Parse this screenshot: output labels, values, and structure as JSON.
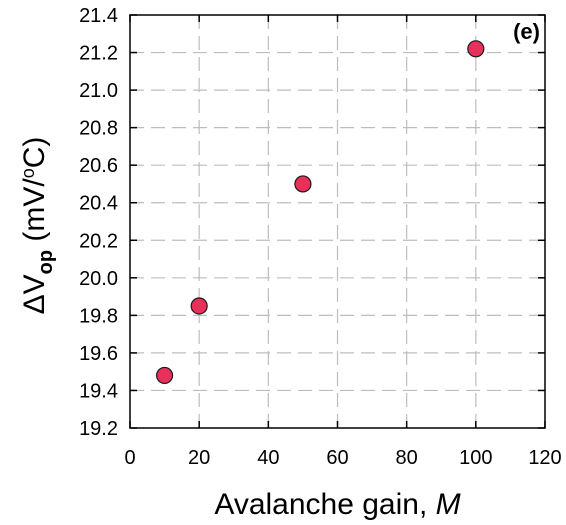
{
  "chart_data": {
    "type": "scatter",
    "panel_label": "(e)",
    "xlabel": {
      "text": "Avalanche gain, ",
      "italic_part": "M"
    },
    "ylabel": {
      "prefix": "ΔV",
      "subscript": "op",
      "units": " (mV/",
      "superscript": "o",
      "units_end": "C)"
    },
    "xlim": [
      0,
      120
    ],
    "ylim": [
      19.2,
      21.4
    ],
    "xticks": [
      0,
      20,
      40,
      60,
      80,
      100,
      120
    ],
    "yticks": [
      19.2,
      19.4,
      19.6,
      19.8,
      20.0,
      20.2,
      20.4,
      20.6,
      20.8,
      21.0,
      21.2,
      21.4
    ],
    "ytick_labels": [
      "19.2",
      "19.4",
      "19.6",
      "19.8",
      "20.0",
      "20.2",
      "20.4",
      "20.6",
      "20.8",
      "21.0",
      "21.2",
      "21.4"
    ],
    "grid": true,
    "series": [
      {
        "x": [
          10,
          20,
          50,
          100
        ],
        "y": [
          19.48,
          19.85,
          20.5,
          21.22
        ],
        "marker_color": "#e8305a",
        "edge_color": "#1a1a1a"
      }
    ]
  }
}
